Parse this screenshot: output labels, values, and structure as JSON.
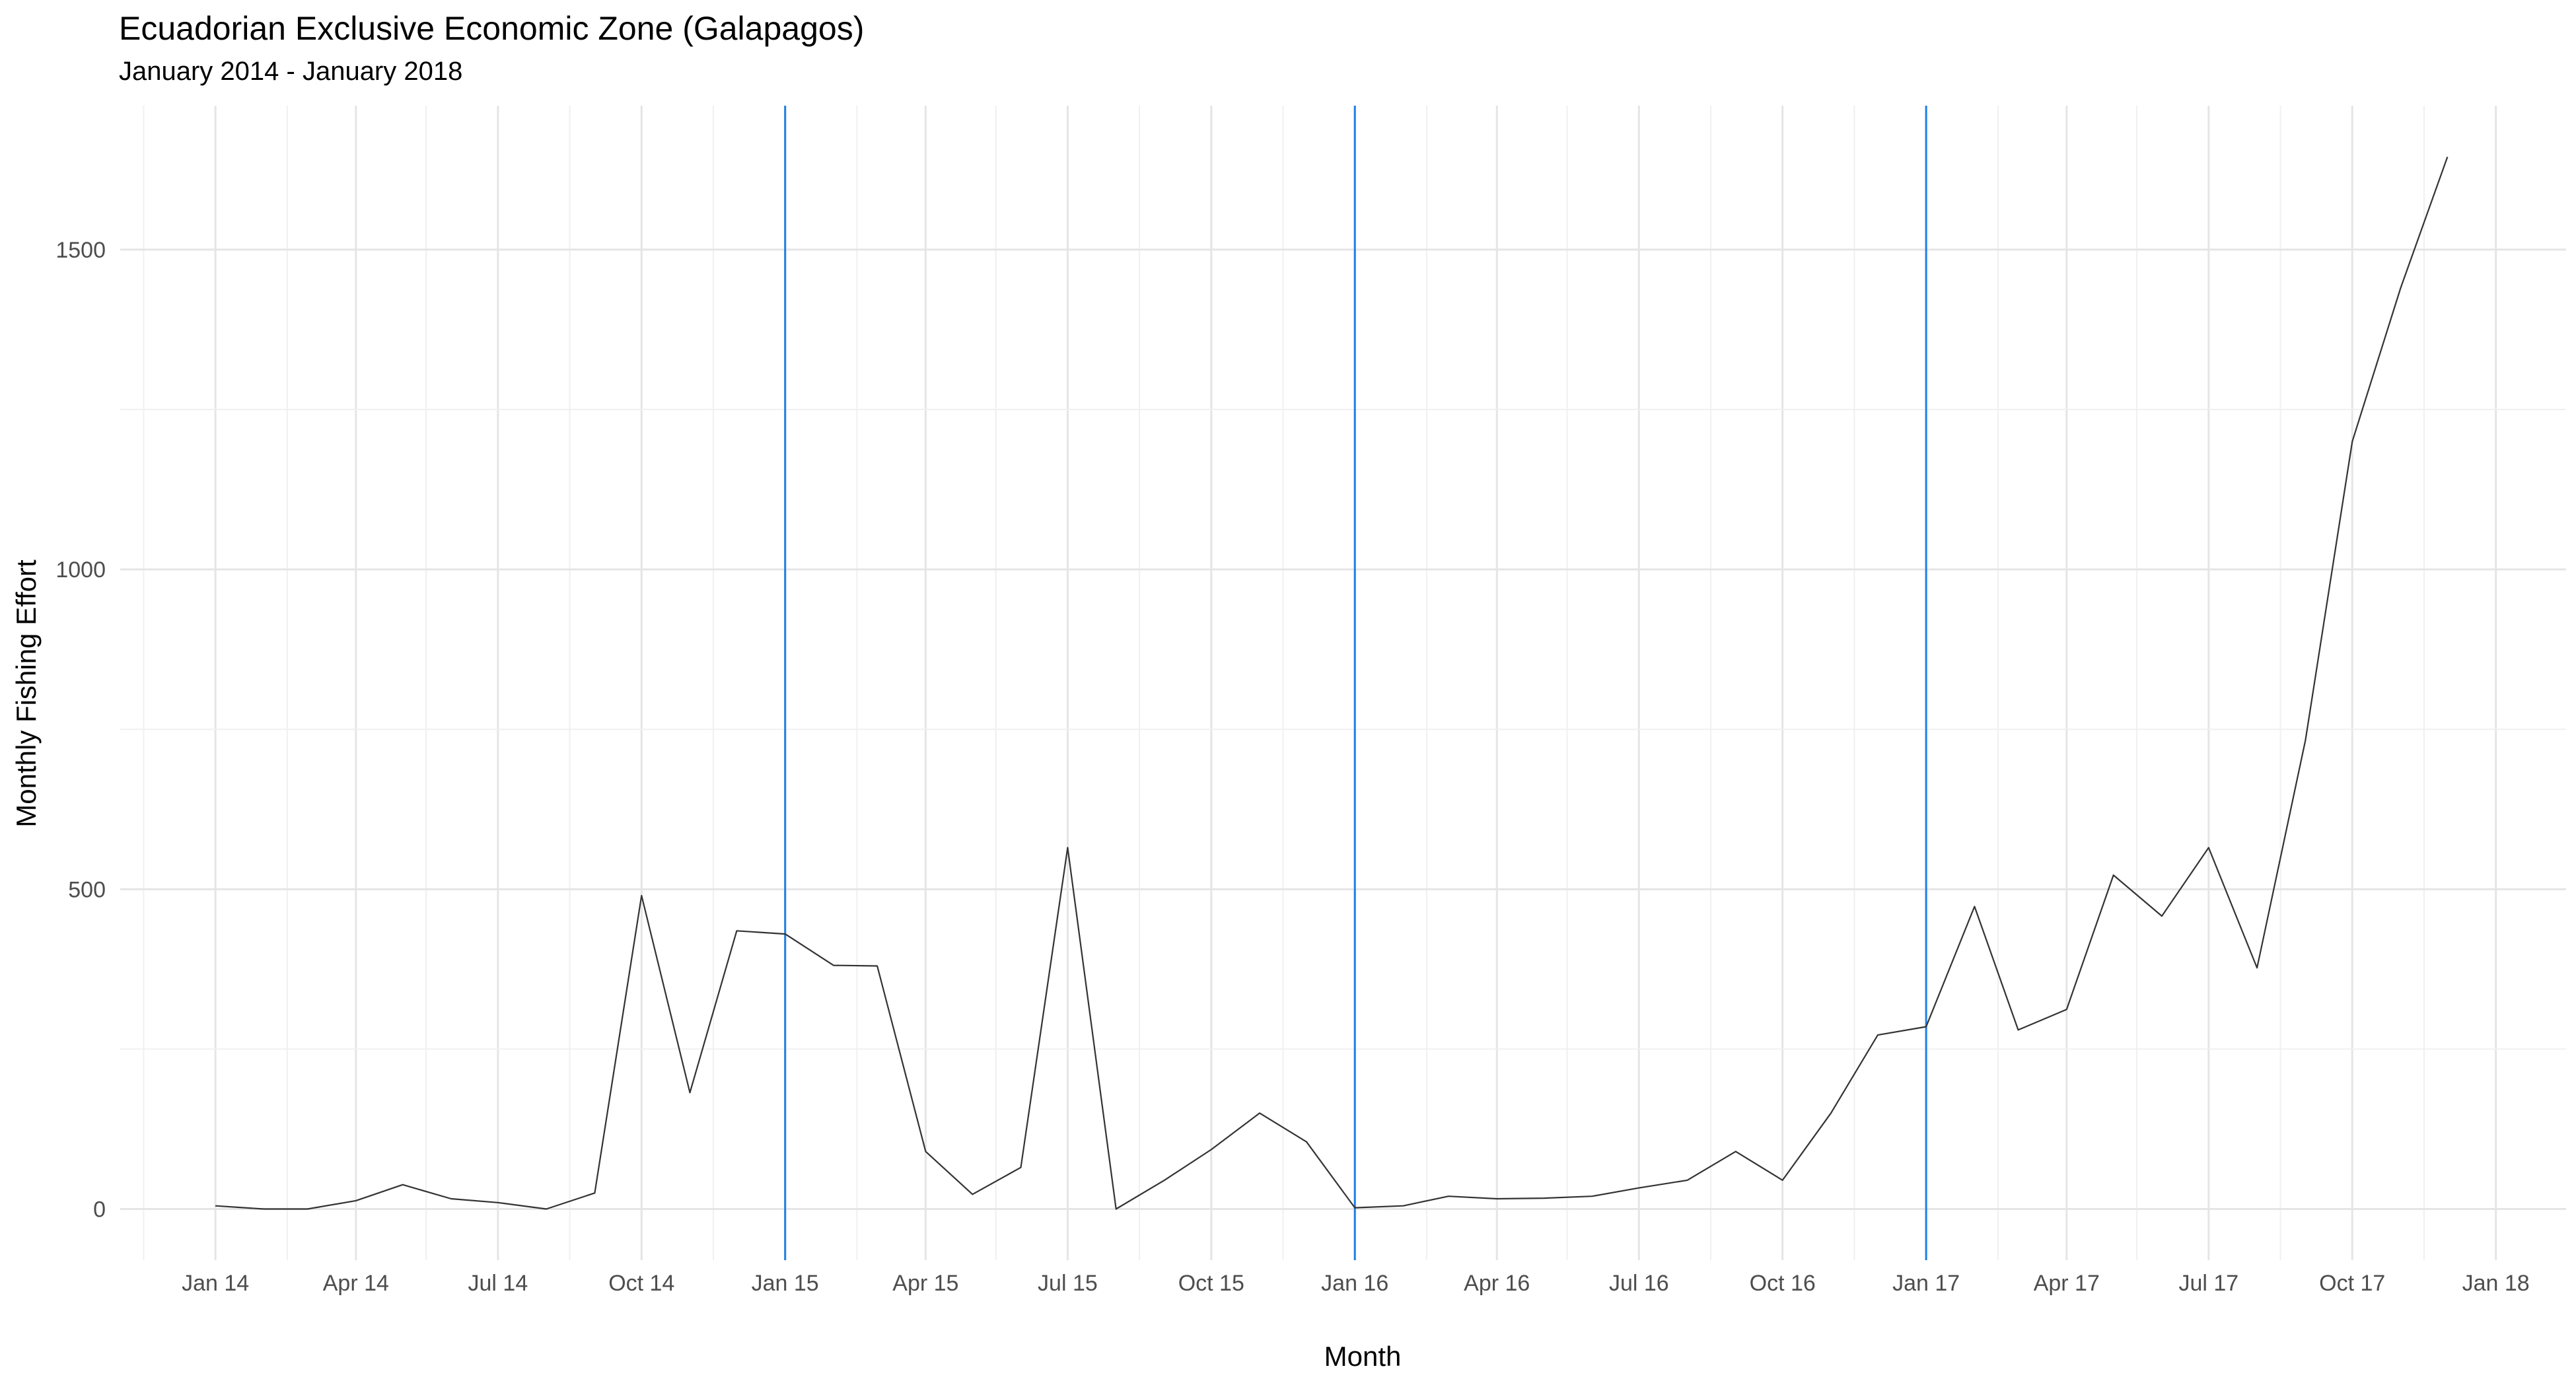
{
  "chart_data": {
    "type": "line",
    "title": "Ecuadorian Exclusive Economic Zone (Galapagos)",
    "subtitle": "January 2014 - January 2018",
    "xlabel": "Month",
    "ylabel": "Monthly Fishing Effort",
    "x_ticks": [
      "Jan 14",
      "Apr 14",
      "Jul 14",
      "Oct 14",
      "Jan 15",
      "Apr 15",
      "Jul 15",
      "Oct 15",
      "Jan 16",
      "Apr 16",
      "Jul 16",
      "Oct 16",
      "Jan 17",
      "Apr 17",
      "Jul 17",
      "Oct 17",
      "Jan 18"
    ],
    "y_ticks": [
      0,
      500,
      1000,
      1500
    ],
    "ylim": [
      -80,
      1725
    ],
    "xlim": [
      "2013-11-01",
      "2018-02-15"
    ],
    "grid": true,
    "reference_lines": {
      "color": "#1e7fe6",
      "x": [
        "2015-01-01",
        "2016-01-01",
        "2017-01-01"
      ]
    },
    "series": [
      {
        "color": "#333333",
        "points": [
          [
            "2014-01-01",
            5
          ],
          [
            "2014-02-01",
            0
          ],
          [
            "2014-03-01",
            0
          ],
          [
            "2014-04-01",
            13
          ],
          [
            "2014-05-01",
            38
          ],
          [
            "2014-06-01",
            16
          ],
          [
            "2014-07-01",
            10
          ],
          [
            "2014-08-01",
            0
          ],
          [
            "2014-09-01",
            25
          ],
          [
            "2014-10-01",
            490
          ],
          [
            "2014-11-01",
            182
          ],
          [
            "2014-12-01",
            435
          ],
          [
            "2015-01-01",
            430
          ],
          [
            "2015-02-01",
            381
          ],
          [
            "2015-03-01",
            380
          ],
          [
            "2015-04-01",
            90
          ],
          [
            "2015-05-01",
            23
          ],
          [
            "2015-06-01",
            65
          ],
          [
            "2015-07-01",
            565
          ],
          [
            "2015-08-01",
            0
          ],
          [
            "2015-09-01",
            45
          ],
          [
            "2015-10-01",
            93
          ],
          [
            "2015-11-01",
            150
          ],
          [
            "2015-12-01",
            105
          ],
          [
            "2016-01-01",
            2
          ],
          [
            "2016-02-01",
            5
          ],
          [
            "2016-03-01",
            20
          ],
          [
            "2016-04-01",
            16
          ],
          [
            "2016-05-01",
            17
          ],
          [
            "2016-06-01",
            20
          ],
          [
            "2016-07-01",
            33
          ],
          [
            "2016-08-01",
            45
          ],
          [
            "2016-09-01",
            90
          ],
          [
            "2016-10-01",
            45
          ],
          [
            "2016-11-01",
            150
          ],
          [
            "2016-12-01",
            272
          ],
          [
            "2017-01-01",
            285
          ],
          [
            "2017-02-01",
            473
          ],
          [
            "2017-03-01",
            280
          ],
          [
            "2017-04-01",
            312
          ],
          [
            "2017-05-01",
            522
          ],
          [
            "2017-06-01",
            458
          ],
          [
            "2017-07-01",
            565
          ],
          [
            "2017-08-01",
            377
          ],
          [
            "2017-09-01",
            733
          ],
          [
            "2017-10-01",
            1200
          ],
          [
            "2017-11-01",
            1440
          ],
          [
            "2017-12-01",
            1645
          ]
        ]
      }
    ]
  }
}
